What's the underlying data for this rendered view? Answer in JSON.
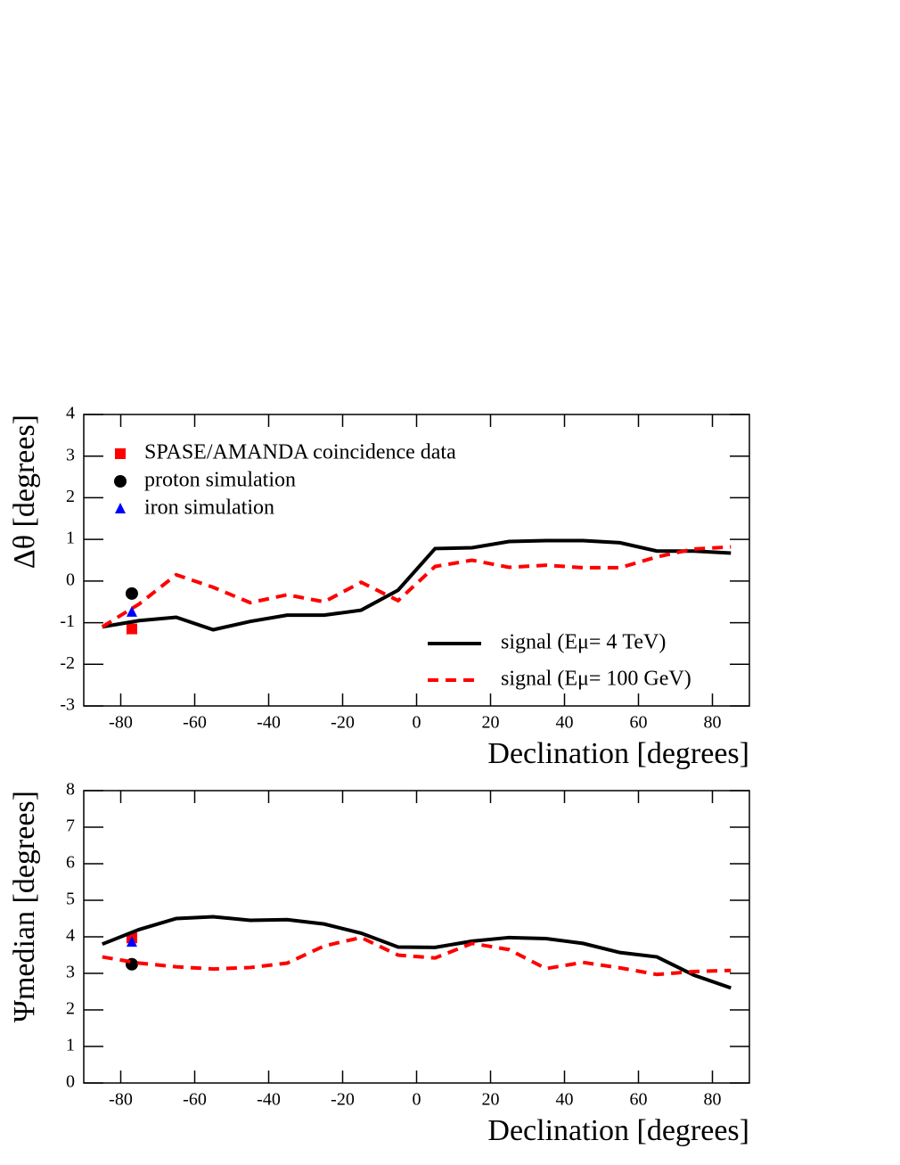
{
  "chart_data": [
    {
      "type": "line",
      "xlabel": "Declination [degrees]",
      "ylabel": "Δθ [degrees]",
      "xlim": [
        -90,
        90
      ],
      "ylim": [
        -3,
        4
      ],
      "xticks": [
        -80,
        -60,
        -40,
        -20,
        0,
        20,
        40,
        60,
        80
      ],
      "yticks": [
        -3,
        -2,
        -1,
        0,
        1,
        2,
        3,
        4
      ],
      "x": [
        -85,
        -75,
        -65,
        -55,
        -45,
        -35,
        -25,
        -15,
        -5,
        5,
        15,
        25,
        35,
        45,
        55,
        65,
        75,
        85
      ],
      "series": [
        {
          "name": "SPASE/AMANDA coincidence data",
          "color": "#ff0000",
          "marker": "square",
          "legend_loc": "upper-left",
          "x": [
            -77
          ],
          "values": [
            -1.15
          ]
        },
        {
          "name": "proton simulation",
          "color": "#000000",
          "marker": "circle",
          "legend_loc": "upper-left",
          "x": [
            -77
          ],
          "values": [
            -0.3
          ]
        },
        {
          "name": "iron simulation",
          "color": "#0000ff",
          "marker": "triangle",
          "legend_loc": "upper-left",
          "x": [
            -77
          ],
          "values": [
            -0.75
          ]
        },
        {
          "name": "signal (Eμ= 4 TeV)",
          "color": "#000000",
          "dash": false,
          "legend_loc": "lower-right",
          "values": [
            -1.1,
            -0.95,
            -0.87,
            -1.17,
            -0.97,
            -0.82,
            -0.82,
            -0.7,
            -0.22,
            0.78,
            0.8,
            0.95,
            0.97,
            0.97,
            0.92,
            0.72,
            0.72,
            0.67
          ]
        },
        {
          "name": "signal (Eμ= 100 GeV)",
          "color": "#ff0000",
          "dash": true,
          "legend_loc": "lower-right",
          "values": [
            -1.1,
            -0.55,
            0.15,
            -0.15,
            -0.52,
            -0.33,
            -0.5,
            -0.03,
            -0.47,
            0.35,
            0.5,
            0.33,
            0.38,
            0.32,
            0.32,
            0.58,
            0.77,
            0.82
          ]
        }
      ]
    },
    {
      "type": "line",
      "xlabel": "Declination [degrees]",
      "ylabel": "Ψmedian [degrees]",
      "xlim": [
        -90,
        90
      ],
      "ylim": [
        0,
        8
      ],
      "xticks": [
        -80,
        -60,
        -40,
        -20,
        0,
        20,
        40,
        60,
        80
      ],
      "yticks": [
        0,
        1,
        2,
        3,
        4,
        5,
        6,
        7,
        8
      ],
      "x": [
        -85,
        -75,
        -65,
        -55,
        -45,
        -35,
        -25,
        -15,
        -5,
        5,
        15,
        25,
        35,
        45,
        55,
        65,
        75,
        85
      ],
      "series": [
        {
          "color": "#ff0000",
          "marker": "square",
          "x": [
            -77
          ],
          "values": [
            3.97
          ]
        },
        {
          "color": "#000000",
          "marker": "circle",
          "x": [
            -77
          ],
          "values": [
            3.25
          ]
        },
        {
          "color": "#0000ff",
          "marker": "triangle",
          "x": [
            -77
          ],
          "values": [
            3.85
          ]
        },
        {
          "color": "#000000",
          "dash": false,
          "values": [
            3.8,
            4.2,
            4.5,
            4.55,
            4.45,
            4.47,
            4.35,
            4.1,
            3.72,
            3.71,
            3.88,
            3.98,
            3.95,
            3.82,
            3.57,
            3.45,
            2.95,
            2.6
          ]
        },
        {
          "color": "#ff0000",
          "dash": true,
          "values": [
            3.45,
            3.28,
            3.18,
            3.12,
            3.16,
            3.28,
            3.75,
            3.98,
            3.5,
            3.42,
            3.82,
            3.65,
            3.13,
            3.3,
            3.15,
            2.97,
            3.05,
            3.08
          ]
        }
      ]
    }
  ]
}
